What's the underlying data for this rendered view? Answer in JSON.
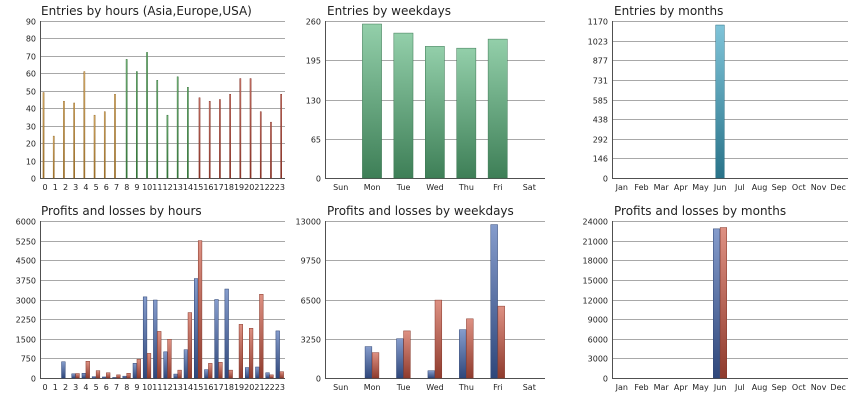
{
  "colors": {
    "asia": "#e2a038",
    "europe": "#47a84e",
    "usa": "#c94a38",
    "weekday_bar": "#59b57c",
    "month_bar": "#3aa4c4",
    "profit": "#4366b0",
    "loss": "#cc5540",
    "grid": "#a8a8a8"
  },
  "chart_data": [
    {
      "id": "entries-hours",
      "type": "bar",
      "title": "Entries by hours (Asia,Europe,USA)",
      "categories": [
        "0",
        "1",
        "2",
        "3",
        "4",
        "5",
        "6",
        "7",
        "8",
        "9",
        "10",
        "11",
        "12",
        "13",
        "14",
        "15",
        "16",
        "17",
        "18",
        "19",
        "20",
        "21",
        "22",
        "23"
      ],
      "yticks": [
        "0",
        "10",
        "20",
        "30",
        "40",
        "50",
        "60",
        "70",
        "80",
        "90"
      ],
      "ylim": [
        0,
        90
      ],
      "series": [
        {
          "values": [
            49,
            24,
            44,
            43,
            61,
            36,
            38,
            48,
            null,
            null,
            null,
            null,
            null,
            null,
            null,
            null,
            null,
            null,
            null,
            null,
            null,
            null,
            null,
            null
          ],
          "color_key": "asia"
        },
        {
          "values": [
            null,
            null,
            null,
            null,
            null,
            null,
            null,
            null,
            68,
            61,
            72,
            56,
            36,
            58,
            52,
            null,
            null,
            null,
            null,
            null,
            null,
            null,
            null,
            null
          ],
          "color_key": "europe"
        },
        {
          "values": [
            null,
            null,
            null,
            null,
            null,
            null,
            null,
            null,
            null,
            null,
            null,
            null,
            null,
            null,
            null,
            46,
            44,
            45,
            48,
            57,
            57,
            38,
            32,
            48
          ],
          "color_key": "usa"
        }
      ]
    },
    {
      "id": "entries-weekdays",
      "type": "bar",
      "title": "Entries by weekdays",
      "categories": [
        "Sun",
        "Mon",
        "Tue",
        "Wed",
        "Thu",
        "Fri",
        "Sat"
      ],
      "yticks": [
        "0",
        "65",
        "130",
        "195",
        "260"
      ],
      "ylim": [
        0,
        260
      ],
      "series": [
        {
          "values": [
            0,
            255,
            240,
            218,
            215,
            230,
            0
          ],
          "color_key": "weekday_bar"
        }
      ]
    },
    {
      "id": "entries-months",
      "type": "bar",
      "title": "Entries by months",
      "categories": [
        "Jan",
        "Feb",
        "Mar",
        "Apr",
        "May",
        "Jun",
        "Jul",
        "Aug",
        "Sep",
        "Oct",
        "Nov",
        "Dec"
      ],
      "yticks": [
        "0",
        "146",
        "292",
        "438",
        "585",
        "731",
        "877",
        "1023",
        "1170"
      ],
      "ylim": [
        0,
        1170
      ],
      "series": [
        {
          "values": [
            0,
            0,
            0,
            0,
            0,
            1140,
            0,
            0,
            0,
            0,
            0,
            0
          ],
          "color_key": "month_bar"
        }
      ]
    },
    {
      "id": "pl-hours",
      "type": "bar",
      "title": "Profits and losses by hours",
      "categories": [
        "0",
        "1",
        "2",
        "3",
        "4",
        "5",
        "6",
        "7",
        "8",
        "9",
        "10",
        "11",
        "12",
        "13",
        "14",
        "15",
        "16",
        "17",
        "18",
        "19",
        "20",
        "21",
        "22",
        "23"
      ],
      "yticks": [
        "0",
        "750",
        "1500",
        "2250",
        "3000",
        "3750",
        "4500",
        "5250",
        "6000"
      ],
      "ylim": [
        0,
        6000
      ],
      "series": [
        {
          "values": [
            0,
            0,
            620,
            160,
            180,
            50,
            40,
            20,
            70,
            560,
            3100,
            2980,
            1000,
            150,
            1080,
            3800,
            320,
            3000,
            3400,
            0,
            400,
            420,
            200,
            1800
          ],
          "color_key": "profit"
        },
        {
          "values": [
            0,
            0,
            0,
            170,
            640,
            280,
            200,
            120,
            180,
            720,
            940,
            1780,
            1480,
            300,
            2500,
            5250,
            560,
            600,
            300,
            2050,
            1900,
            3200,
            120,
            240
          ],
          "color_key": "loss"
        }
      ]
    },
    {
      "id": "pl-weekdays",
      "type": "bar",
      "title": "Profits and losses by weekdays",
      "categories": [
        "Sun",
        "Mon",
        "Tue",
        "Wed",
        "Thu",
        "Fri",
        "Sat"
      ],
      "yticks": [
        "0",
        "3250",
        "6500",
        "9750",
        "13000"
      ],
      "ylim": [
        0,
        13000
      ],
      "series": [
        {
          "values": [
            0,
            2600,
            3250,
            600,
            4000,
            12700,
            0
          ],
          "color_key": "profit"
        },
        {
          "values": [
            0,
            2100,
            3900,
            6450,
            4900,
            5950,
            0
          ],
          "color_key": "loss"
        }
      ]
    },
    {
      "id": "pl-months",
      "type": "bar",
      "title": "Profits and losses by months",
      "categories": [
        "Jan",
        "Feb",
        "Mar",
        "Apr",
        "May",
        "Jun",
        "Jul",
        "Aug",
        "Sep",
        "Oct",
        "Nov",
        "Dec"
      ],
      "yticks": [
        "0",
        "3000",
        "6000",
        "9000",
        "12000",
        "15000",
        "18000",
        "21000",
        "24000"
      ],
      "ylim": [
        0,
        24000
      ],
      "series": [
        {
          "values": [
            0,
            0,
            0,
            0,
            0,
            22800,
            0,
            0,
            0,
            0,
            0,
            0
          ],
          "color_key": "profit"
        },
        {
          "values": [
            0,
            0,
            0,
            0,
            0,
            23000,
            0,
            0,
            0,
            0,
            0,
            0
          ],
          "color_key": "loss"
        }
      ]
    }
  ]
}
